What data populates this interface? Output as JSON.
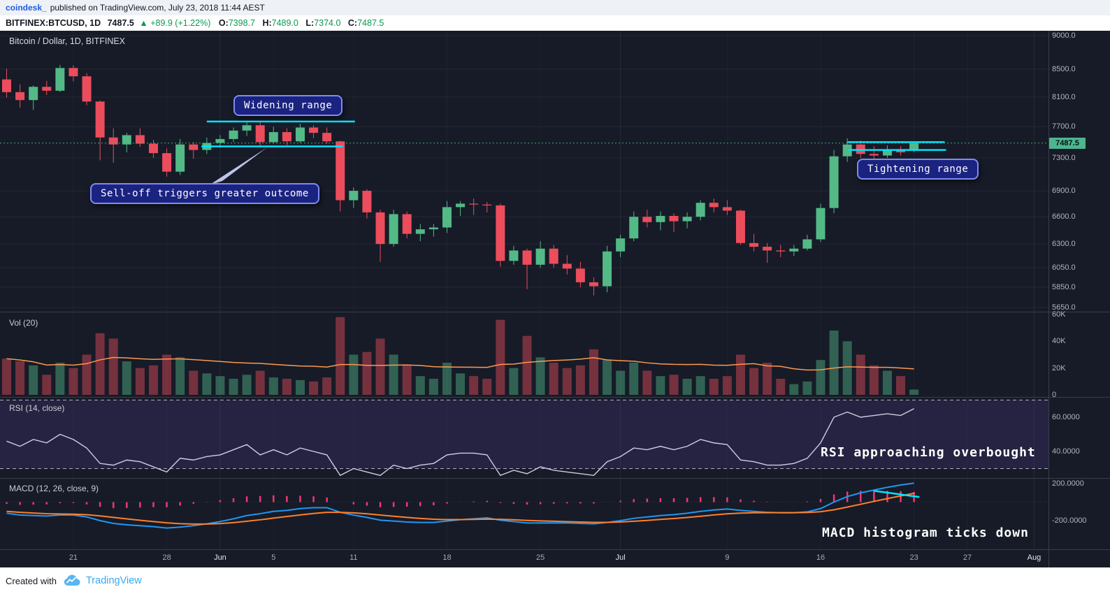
{
  "header": {
    "author": "coindesk_",
    "published": "published on TradingView.com, July 23, 2018 11:44 AEST",
    "symbol": "BITFINEX:BTCUSD, 1D",
    "last_price": "7487.5",
    "change_icon": "▲",
    "change_text": "+89.9 (+1.22%)",
    "ohlc_labels": {
      "o": "O:",
      "h": "H:",
      "l": "L:",
      "c": "C:"
    },
    "ohlc": {
      "o": "7398.7",
      "h": "7489.0",
      "l": "7374.0",
      "c": "7487.5"
    }
  },
  "footer": {
    "created_with": "Created with",
    "brand": "TradingView"
  },
  "chart_data": {
    "type": "candlestick",
    "title": "Bitcoin / Dollar, 1D, BITFINEX",
    "symbol": "BITFINEX:BTCUSD",
    "interval": "1D",
    "price_scale": "log",
    "indicators": {
      "volume": "Vol (20)",
      "rsi": "RSI (14, close)",
      "macd": "MACD (12, 26, close, 9)"
    },
    "annotations": {
      "widening": "Widening range",
      "selloff": "Sell-off triggers greater outcome",
      "tightening": "Tightening range",
      "rsi_note": "RSI approaching overbought",
      "macd_note": "MACD histogram ticks down"
    },
    "last_price": 7487.5,
    "last_price_label": "7487.5",
    "price_gridlines": [
      9000,
      8500,
      8100,
      7700,
      7300,
      6900,
      6600,
      6300,
      6050,
      5850,
      5650
    ],
    "rsi_bands": [
      70,
      30
    ],
    "axes": {
      "price": [
        {
          "label": "9000.0",
          "value": 9000
        },
        {
          "label": "8500.0",
          "value": 8500
        },
        {
          "label": "8100.0",
          "value": 8100
        },
        {
          "label": "7700.0",
          "value": 7700
        },
        {
          "label": "7300.0",
          "value": 7300
        },
        {
          "label": "6900.0",
          "value": 6900
        },
        {
          "label": "6600.0",
          "value": 6600
        },
        {
          "label": "6300.0",
          "value": 6300
        },
        {
          "label": "6050.0",
          "value": 6050
        },
        {
          "label": "5850.0",
          "value": 5850
        },
        {
          "label": "5650.0",
          "value": 5650
        }
      ],
      "volume": [
        {
          "label": "60K",
          "value": 60
        },
        {
          "label": "40K",
          "value": 40
        },
        {
          "label": "20K",
          "value": 20
        },
        {
          "label": "0",
          "value": 0
        }
      ],
      "rsi": [
        {
          "label": "60.0000",
          "value": 60
        },
        {
          "label": "40.0000",
          "value": 40
        }
      ],
      "macd": [
        {
          "label": "200.0000",
          "value": 200
        },
        {
          "label": "-200.0000",
          "value": -200
        }
      ],
      "time": [
        {
          "label": "21",
          "i": 5
        },
        {
          "label": "28",
          "i": 12
        },
        {
          "label": "Jun",
          "i": 16,
          "month": true
        },
        {
          "label": "5",
          "i": 20
        },
        {
          "label": "11",
          "i": 26
        },
        {
          "label": "18",
          "i": 33
        },
        {
          "label": "25",
          "i": 40
        },
        {
          "label": "Jul",
          "i": 46,
          "month": true
        },
        {
          "label": "9",
          "i": 54
        },
        {
          "label": "16",
          "i": 61
        },
        {
          "label": "23",
          "i": 68
        },
        {
          "label": "27",
          "i": 72
        },
        {
          "label": "Aug",
          "i": 77,
          "month": true
        }
      ]
    },
    "dates": [
      "May 16",
      "May 17",
      "May 18",
      "May 19",
      "May 20",
      "May 21",
      "May 22",
      "May 23",
      "May 24",
      "May 25",
      "May 26",
      "May 27",
      "May 28",
      "May 29",
      "May 30",
      "May 31",
      "Jun 1",
      "Jun 2",
      "Jun 3",
      "Jun 4",
      "Jun 5",
      "Jun 6",
      "Jun 7",
      "Jun 8",
      "Jun 9",
      "Jun 10",
      "Jun 11",
      "Jun 12",
      "Jun 13",
      "Jun 14",
      "Jun 15",
      "Jun 16",
      "Jun 17",
      "Jun 18",
      "Jun 19",
      "Jun 20",
      "Jun 21",
      "Jun 22",
      "Jun 23",
      "Jun 24",
      "Jun 25",
      "Jun 26",
      "Jun 27",
      "Jun 28",
      "Jun 29",
      "Jun 30",
      "Jul 1",
      "Jul 2",
      "Jul 3",
      "Jul 4",
      "Jul 5",
      "Jul 6",
      "Jul 7",
      "Jul 8",
      "Jul 9",
      "Jul 10",
      "Jul 11",
      "Jul 12",
      "Jul 13",
      "Jul 14",
      "Jul 15",
      "Jul 16",
      "Jul 17",
      "Jul 18",
      "Jul 19",
      "Jul 20",
      "Jul 21",
      "Jul 22",
      "Jul 23"
    ],
    "ohlc": [
      [
        8350,
        8505,
        8095,
        8170
      ],
      [
        8170,
        8280,
        7955,
        8060
      ],
      [
        8060,
        8265,
        7925,
        8245
      ],
      [
        8245,
        8330,
        8130,
        8190
      ],
      [
        8190,
        8560,
        8170,
        8515
      ],
      [
        8515,
        8555,
        8320,
        8395
      ],
      [
        8395,
        8440,
        7990,
        8040
      ],
      [
        8040,
        8055,
        7270,
        7560
      ],
      [
        7560,
        7680,
        7240,
        7470
      ],
      [
        7470,
        7620,
        7370,
        7590
      ],
      [
        7590,
        7680,
        7440,
        7480
      ],
      [
        7480,
        7530,
        7300,
        7360
      ],
      [
        7360,
        7420,
        7070,
        7130
      ],
      [
        7130,
        7540,
        7090,
        7470
      ],
      [
        7470,
        7500,
        7290,
        7400
      ],
      [
        7400,
        7560,
        7350,
        7490
      ],
      [
        7490,
        7590,
        7430,
        7540
      ],
      [
        7540,
        7690,
        7500,
        7650
      ],
      [
        7650,
        7770,
        7580,
        7720
      ],
      [
        7720,
        7760,
        7450,
        7500
      ],
      [
        7500,
        7700,
        7480,
        7630
      ],
      [
        7630,
        7680,
        7460,
        7510
      ],
      [
        7510,
        7740,
        7490,
        7690
      ],
      [
        7690,
        7720,
        7550,
        7620
      ],
      [
        7620,
        7690,
        7480,
        7510
      ],
      [
        7510,
        7520,
        6660,
        6790
      ],
      [
        6790,
        6940,
        6700,
        6900
      ],
      [
        6900,
        6920,
        6580,
        6650
      ],
      [
        6650,
        6680,
        6110,
        6300
      ],
      [
        6300,
        6680,
        6270,
        6630
      ],
      [
        6630,
        6660,
        6360,
        6410
      ],
      [
        6410,
        6520,
        6330,
        6460
      ],
      [
        6460,
        6520,
        6380,
        6480
      ],
      [
        6480,
        6780,
        6420,
        6710
      ],
      [
        6710,
        6780,
        6610,
        6750
      ],
      [
        6750,
        6810,
        6620,
        6740
      ],
      [
        6740,
        6770,
        6650,
        6730
      ],
      [
        6730,
        6750,
        6060,
        6120
      ],
      [
        6120,
        6280,
        6080,
        6230
      ],
      [
        6230,
        6250,
        5830,
        6080
      ],
      [
        6080,
        6330,
        6050,
        6250
      ],
      [
        6250,
        6290,
        6050,
        6090
      ],
      [
        6090,
        6180,
        5980,
        6040
      ],
      [
        6040,
        6110,
        5850,
        5900
      ],
      [
        5900,
        5950,
        5770,
        5860
      ],
      [
        5860,
        6280,
        5800,
        6220
      ],
      [
        6220,
        6400,
        6160,
        6360
      ],
      [
        6360,
        6660,
        6330,
        6600
      ],
      [
        6600,
        6680,
        6480,
        6540
      ],
      [
        6540,
        6660,
        6450,
        6610
      ],
      [
        6610,
        6640,
        6430,
        6550
      ],
      [
        6550,
        6650,
        6470,
        6600
      ],
      [
        6600,
        6790,
        6560,
        6760
      ],
      [
        6760,
        6810,
        6650,
        6710
      ],
      [
        6710,
        6790,
        6620,
        6670
      ],
      [
        6670,
        6680,
        6290,
        6310
      ],
      [
        6310,
        6410,
        6220,
        6270
      ],
      [
        6270,
        6310,
        6100,
        6230
      ],
      [
        6230,
        6290,
        6160,
        6220
      ],
      [
        6220,
        6290,
        6170,
        6250
      ],
      [
        6250,
        6400,
        6230,
        6350
      ],
      [
        6350,
        6750,
        6320,
        6700
      ],
      [
        6700,
        7400,
        6640,
        7320
      ],
      [
        7320,
        7550,
        7250,
        7470
      ],
      [
        7470,
        7520,
        7300,
        7350
      ],
      [
        7350,
        7450,
        7260,
        7330
      ],
      [
        7330,
        7460,
        7300,
        7410
      ],
      [
        7410,
        7450,
        7330,
        7370
      ],
      [
        7398.7,
        7489,
        7374,
        7487.5
      ]
    ],
    "volume_k": [
      27,
      25,
      22,
      15,
      24,
      20,
      30,
      46,
      42,
      25,
      20,
      22,
      30,
      28,
      18,
      16,
      14,
      12,
      15,
      18,
      13,
      12,
      11,
      10,
      13,
      58,
      30,
      32,
      42,
      30,
      22,
      14,
      12,
      24,
      16,
      14,
      12,
      56,
      20,
      44,
      28,
      24,
      20,
      22,
      34,
      26,
      18,
      24,
      18,
      14,
      15,
      12,
      14,
      12,
      14,
      30,
      20,
      24,
      12,
      8,
      10,
      26,
      48,
      40,
      30,
      22,
      18,
      14,
      4
    ],
    "rsi": [
      46,
      43,
      47,
      45,
      50,
      47,
      42,
      33,
      32,
      35,
      34,
      31,
      28,
      36,
      35,
      37,
      38,
      41,
      44,
      38,
      41,
      38,
      42,
      40,
      38,
      26,
      30,
      28,
      26,
      32,
      30,
      32,
      33,
      38,
      39,
      39,
      38,
      26,
      29,
      27,
      31,
      29,
      28,
      27,
      26,
      34,
      37,
      42,
      41,
      43,
      41,
      43,
      47,
      45,
      44,
      35,
      34,
      32,
      32,
      33,
      36,
      45,
      60,
      63,
      60,
      61,
      62,
      61,
      65
    ],
    "macd": [
      -120,
      -140,
      -145,
      -150,
      -140,
      -140,
      -160,
      -200,
      -230,
      -245,
      -255,
      -265,
      -280,
      -270,
      -255,
      -235,
      -210,
      -180,
      -145,
      -125,
      -100,
      -90,
      -70,
      -60,
      -60,
      -110,
      -140,
      -165,
      -195,
      -205,
      -215,
      -220,
      -220,
      -205,
      -190,
      -180,
      -170,
      -195,
      -210,
      -225,
      -225,
      -225,
      -225,
      -230,
      -235,
      -220,
      -200,
      -175,
      -160,
      -145,
      -135,
      -120,
      -100,
      -85,
      -75,
      -90,
      -100,
      -110,
      -115,
      -115,
      -105,
      -70,
      0,
      60,
      100,
      130,
      160,
      185,
      205
    ],
    "macd_signal": [
      -100,
      -110,
      -118,
      -125,
      -128,
      -130,
      -136,
      -149,
      -165,
      -181,
      -196,
      -210,
      -224,
      -233,
      -237,
      -237,
      -232,
      -222,
      -207,
      -191,
      -173,
      -156,
      -139,
      -123,
      -110,
      -110,
      -116,
      -126,
      -140,
      -153,
      -165,
      -176,
      -185,
      -189,
      -189,
      -187,
      -184,
      -186,
      -191,
      -198,
      -203,
      -207,
      -211,
      -215,
      -219,
      -219,
      -215,
      -207,
      -198,
      -187,
      -177,
      -166,
      -153,
      -139,
      -126,
      -119,
      -115,
      -114,
      -114,
      -114,
      -112,
      -104,
      -83,
      -54,
      -23,
      8,
      38,
      67,
      95
    ],
    "annotation_lines": [
      {
        "note": "widening-top",
        "price": 7770,
        "i1": 15.0,
        "i2": 26.1
      },
      {
        "note": "widening-bottom",
        "price": 7445,
        "i1": 14.6,
        "i2": 25.2
      },
      {
        "note": "tightening-top",
        "price": 7500,
        "i1": 63.0,
        "i2": 70.3
      },
      {
        "note": "tightening-bottom",
        "price": 7400,
        "i1": 63.1,
        "i2": 70.4
      }
    ],
    "macd_trendline": {
      "i1": 65.0,
      "v1": 122,
      "i2": 68.4,
      "v2": 55
    },
    "colors": {
      "up": "#53b987",
      "down": "#eb4d5c",
      "vol_ma": "#ff9850",
      "rsi": "#d3cae6",
      "macd": "#2196f3",
      "signal": "#ff7f2a",
      "hist": "#f23674",
      "annotation": "#00e5ff",
      "price_line": "#3dae70",
      "tag_bg": "#4cb68e"
    }
  }
}
